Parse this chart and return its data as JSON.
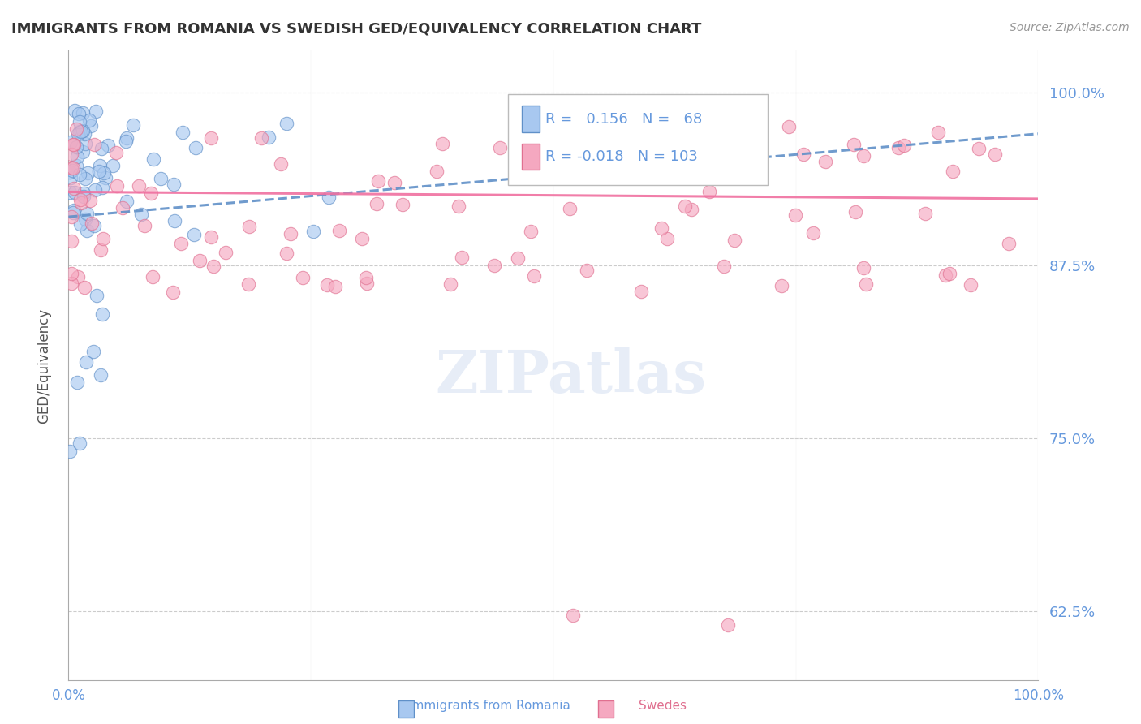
{
  "title": "IMMIGRANTS FROM ROMANIA VS SWEDISH GED/EQUIVALENCY CORRELATION CHART",
  "source_text": "Source: ZipAtlas.com",
  "ylabel": "GED/Equivalency",
  "ytick_labels": [
    "100.0%",
    "87.5%",
    "75.0%",
    "62.5%"
  ],
  "ytick_values": [
    1.0,
    0.875,
    0.75,
    0.625
  ],
  "legend_label1": "Immigrants from Romania",
  "legend_label2": "Swedes",
  "legend_R1": "0.156",
  "legend_N1": "68",
  "legend_R2": "-0.018",
  "legend_N2": "103",
  "color_blue": "#A8C8F0",
  "color_pink": "#F5A8C0",
  "edge_blue": "#6090C8",
  "edge_pink": "#E07090",
  "trendline_blue_color": "#6090C8",
  "trendline_pink_color": "#F070A0",
  "xlim": [
    0,
    100
  ],
  "ylim": [
    0.575,
    1.03
  ],
  "figsize": [
    14.06,
    8.92
  ],
  "dpi": 100,
  "title_color": "#333333",
  "source_color": "#999999",
  "tick_color": "#6699DD",
  "ylabel_color": "#555555",
  "grid_color": "#CCCCCC"
}
